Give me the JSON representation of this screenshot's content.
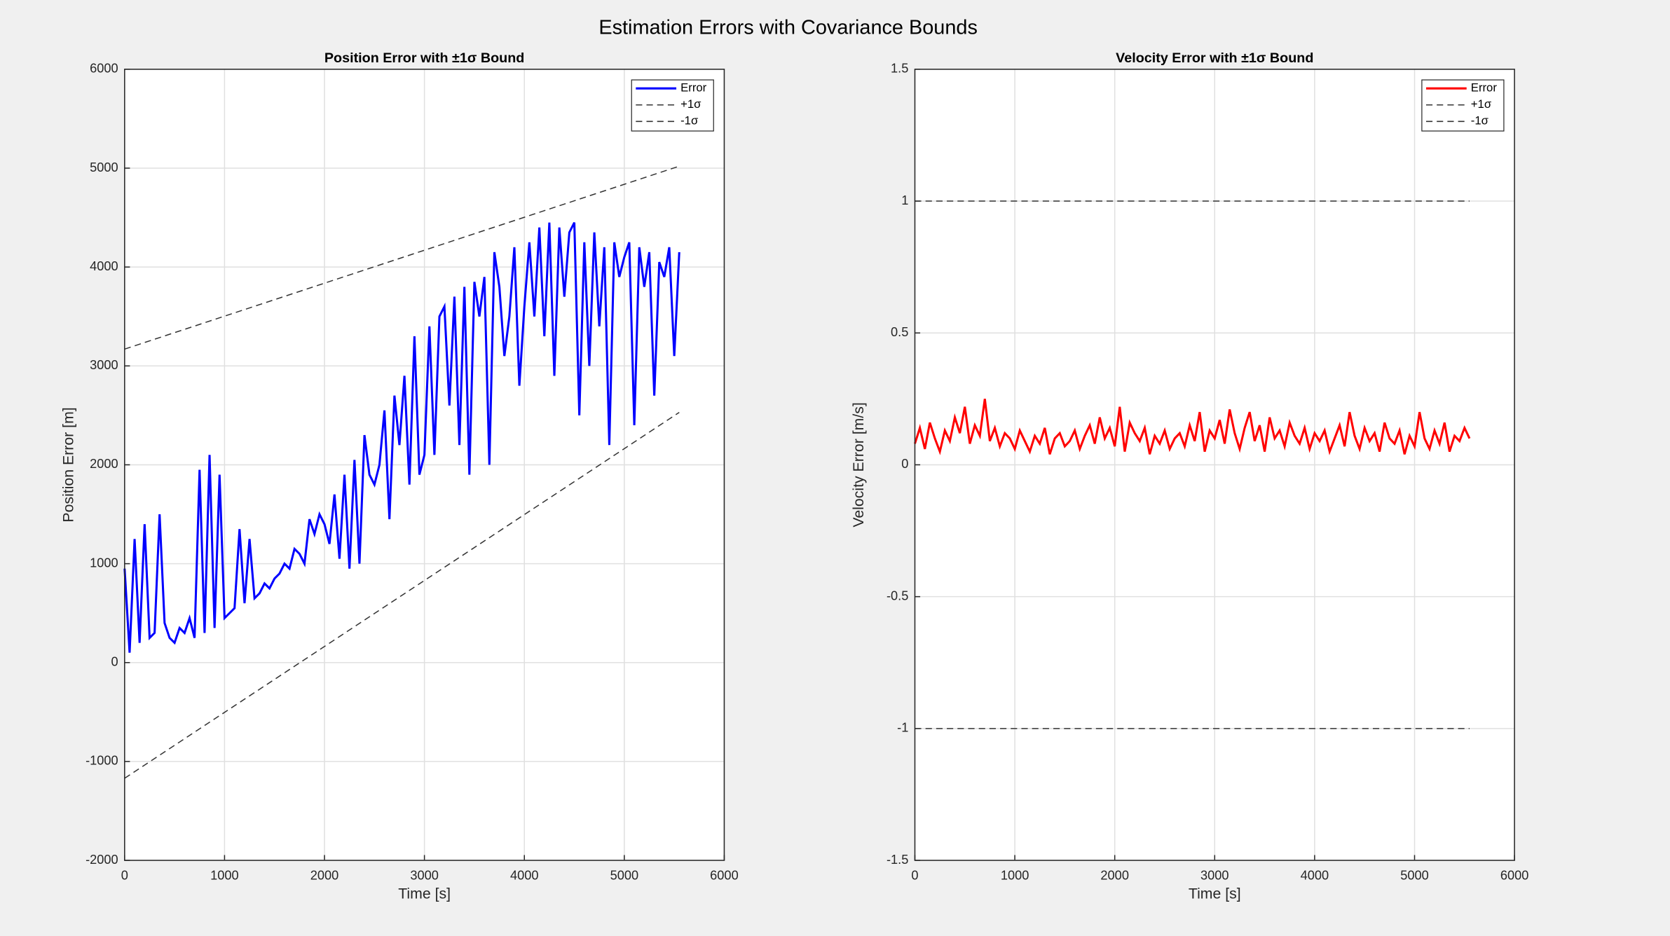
{
  "title": "Estimation Errors with Covariance Bounds",
  "chart_data": [
    {
      "type": "line",
      "title": "Position Error with ±1σ Bound",
      "x_label": "Time [s]",
      "y_label": "Position Error [m]",
      "xlim": [
        0,
        6000
      ],
      "xticks": [
        0,
        1000,
        2000,
        3000,
        4000,
        5000,
        6000
      ],
      "ylim": [
        -2000,
        6000
      ],
      "yticks": [
        -2000,
        -1000,
        0,
        1000,
        2000,
        3000,
        4000,
        5000,
        6000
      ],
      "grid": true,
      "legend": "upper right",
      "series": [
        {
          "name": "Error",
          "color": "#0000ff",
          "style": "solid",
          "x": [
            0,
            50,
            100,
            150,
            200,
            250,
            300,
            350,
            400,
            450,
            500,
            550,
            600,
            650,
            700,
            750,
            800,
            850,
            900,
            950,
            1000,
            1050,
            1100,
            1150,
            1200,
            1250,
            1300,
            1350,
            1400,
            1450,
            1500,
            1550,
            1600,
            1650,
            1700,
            1750,
            1800,
            1850,
            1900,
            1950,
            2000,
            2050,
            2100,
            2150,
            2200,
            2250,
            2300,
            2350,
            2400,
            2450,
            2500,
            2550,
            2600,
            2650,
            2700,
            2750,
            2800,
            2850,
            2900,
            2950,
            3000,
            3050,
            3100,
            3150,
            3200,
            3250,
            3300,
            3350,
            3400,
            3450,
            3500,
            3550,
            3600,
            3650,
            3700,
            3750,
            3800,
            3850,
            3900,
            3950,
            4000,
            4050,
            4100,
            4150,
            4200,
            4250,
            4300,
            4350,
            4400,
            4450,
            4500,
            4550,
            4600,
            4650,
            4700,
            4750,
            4800,
            4850,
            4900,
            4950,
            5000,
            5050,
            5100,
            5150,
            5200,
            5250,
            5300,
            5350,
            5400,
            5450,
            5500,
            5550
          ],
          "values": [
            950,
            100,
            1250,
            200,
            1400,
            250,
            300,
            1500,
            400,
            250,
            200,
            350,
            300,
            450,
            250,
            1950,
            300,
            2100,
            350,
            1900,
            450,
            500,
            550,
            1350,
            600,
            1250,
            650,
            700,
            800,
            750,
            850,
            900,
            1000,
            950,
            1150,
            1100,
            1000,
            1450,
            1300,
            1500,
            1400,
            1200,
            1700,
            1050,
            1900,
            950,
            2050,
            1000,
            2300,
            1900,
            1800,
            2000,
            2550,
            1450,
            2700,
            2200,
            2900,
            1800,
            3300,
            1900,
            2100,
            3400,
            2100,
            3500,
            3600,
            2600,
            3700,
            2200,
            3800,
            1900,
            3850,
            3500,
            3900,
            2000,
            4150,
            3800,
            3100,
            3500,
            4200,
            2800,
            3600,
            4250,
            3500,
            4400,
            3300,
            4450,
            2900,
            4400,
            3700,
            4350,
            4450,
            2500,
            4250,
            3000,
            4350,
            3400,
            4200,
            2200,
            4250,
            3900,
            4100,
            4250,
            2400,
            4200,
            3800,
            4150,
            2700,
            4050,
            3900,
            4200,
            3100,
            4150
          ]
        },
        {
          "name": "+1σ",
          "color": "#333333",
          "style": "dashed",
          "x": [
            0,
            5550
          ],
          "values": [
            3170,
            5020
          ]
        },
        {
          "name": "-1σ",
          "color": "#333333",
          "style": "dashed",
          "x": [
            0,
            5550
          ],
          "values": [
            -1170,
            2530
          ]
        }
      ]
    },
    {
      "type": "line",
      "title": "Velocity Error with ±1σ Bound",
      "x_label": "Time [s]",
      "y_label": "Velocity Error [m/s]",
      "xlim": [
        0,
        6000
      ],
      "xticks": [
        0,
        1000,
        2000,
        3000,
        4000,
        5000,
        6000
      ],
      "ylim": [
        -1.5,
        1.5
      ],
      "yticks": [
        -1.5,
        -1,
        -0.5,
        0,
        0.5,
        1,
        1.5
      ],
      "grid": true,
      "legend": "upper right",
      "series": [
        {
          "name": "Error",
          "color": "#ff0000",
          "style": "solid",
          "x": [
            0,
            50,
            100,
            150,
            200,
            250,
            300,
            350,
            400,
            450,
            500,
            550,
            600,
            650,
            700,
            750,
            800,
            850,
            900,
            950,
            1000,
            1050,
            1100,
            1150,
            1200,
            1250,
            1300,
            1350,
            1400,
            1450,
            1500,
            1550,
            1600,
            1650,
            1700,
            1750,
            1800,
            1850,
            1900,
            1950,
            2000,
            2050,
            2100,
            2150,
            2200,
            2250,
            2300,
            2350,
            2400,
            2450,
            2500,
            2550,
            2600,
            2650,
            2700,
            2750,
            2800,
            2850,
            2900,
            2950,
            3000,
            3050,
            3100,
            3150,
            3200,
            3250,
            3300,
            3350,
            3400,
            3450,
            3500,
            3550,
            3600,
            3650,
            3700,
            3750,
            3800,
            3850,
            3900,
            3950,
            4000,
            4050,
            4100,
            4150,
            4200,
            4250,
            4300,
            4350,
            4400,
            4450,
            4500,
            4550,
            4600,
            4650,
            4700,
            4750,
            4800,
            4850,
            4900,
            4950,
            5000,
            5050,
            5100,
            5150,
            5200,
            5250,
            5300,
            5350,
            5400,
            5450,
            5500,
            5550
          ],
          "values": [
            0.08,
            0.14,
            0.06,
            0.16,
            0.1,
            0.05,
            0.13,
            0.09,
            0.18,
            0.12,
            0.22,
            0.08,
            0.15,
            0.11,
            0.25,
            0.09,
            0.14,
            0.07,
            0.12,
            0.1,
            0.06,
            0.13,
            0.09,
            0.05,
            0.11,
            0.08,
            0.14,
            0.04,
            0.1,
            0.12,
            0.07,
            0.09,
            0.13,
            0.06,
            0.11,
            0.15,
            0.08,
            0.18,
            0.1,
            0.14,
            0.07,
            0.22,
            0.05,
            0.16,
            0.12,
            0.09,
            0.14,
            0.04,
            0.11,
            0.08,
            0.13,
            0.06,
            0.1,
            0.12,
            0.07,
            0.15,
            0.09,
            0.2,
            0.05,
            0.13,
            0.1,
            0.17,
            0.08,
            0.21,
            0.12,
            0.06,
            0.14,
            0.2,
            0.09,
            0.15,
            0.05,
            0.18,
            0.1,
            0.13,
            0.07,
            0.16,
            0.11,
            0.08,
            0.14,
            0.06,
            0.12,
            0.09,
            0.13,
            0.05,
            0.1,
            0.15,
            0.07,
            0.2,
            0.11,
            0.06,
            0.14,
            0.09,
            0.12,
            0.05,
            0.16,
            0.1,
            0.08,
            0.13,
            0.04,
            0.11,
            0.07,
            0.2,
            0.1,
            0.06,
            0.13,
            0.08,
            0.16,
            0.05,
            0.11,
            0.09,
            0.14,
            0.1
          ]
        },
        {
          "name": "+1σ",
          "color": "#333333",
          "style": "dashed",
          "x": [
            0,
            5550
          ],
          "values": [
            1,
            1
          ]
        },
        {
          "name": "-1σ",
          "color": "#333333",
          "style": "dashed",
          "x": [
            0,
            5550
          ],
          "values": [
            -1,
            -1
          ]
        }
      ]
    }
  ]
}
